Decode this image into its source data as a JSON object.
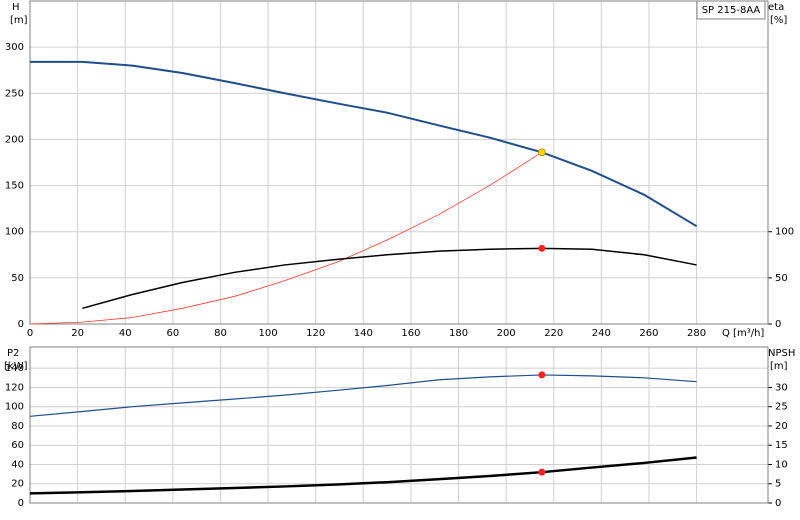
{
  "chart_data": [
    {
      "type": "line",
      "title": "SP 215-8AA",
      "ylabel": "H",
      "yunit": "[m]",
      "y2label": "eta",
      "y2unit": "[%]",
      "xlabel": "Q [m³/h]",
      "xlim": [
        0,
        310
      ],
      "xticks": [
        0,
        20,
        40,
        60,
        80,
        100,
        120,
        140,
        160,
        180,
        200,
        220,
        240,
        260,
        280
      ],
      "ylim": [
        0,
        350
      ],
      "yticks": [
        0,
        50,
        100,
        150,
        200,
        250,
        300
      ],
      "y2lim": [
        0,
        350
      ],
      "y2ticks": [
        0,
        50,
        100
      ],
      "grid": true,
      "series": [
        {
          "color": "#1f4e8c",
          "width": 2,
          "x": [
            0,
            22,
            43,
            64,
            86,
            107,
            129,
            150,
            172,
            193,
            215,
            236,
            258,
            280
          ],
          "values": [
            284,
            284,
            280,
            272,
            261,
            250,
            239,
            229,
            215,
            202,
            186,
            166,
            140,
            106
          ]
        },
        {
          "color": "#ff3b30",
          "width": 0.8,
          "x": [
            0,
            22,
            43,
            64,
            86,
            107,
            129,
            150,
            172,
            193,
            215
          ],
          "values": [
            0,
            2,
            7,
            17,
            30,
            47,
            67,
            91,
            119,
            150,
            186
          ]
        },
        {
          "color": "#000000",
          "width": 1.5,
          "axis": "y2",
          "x": [
            22,
            43,
            64,
            86,
            107,
            129,
            150,
            172,
            193,
            215,
            236,
            258,
            280
          ],
          "values": [
            17,
            32,
            45,
            56,
            64,
            70,
            75,
            79,
            81,
            82,
            81,
            75,
            64
          ]
        }
      ],
      "points": [
        {
          "x": 215,
          "y": 186,
          "color": "#ffd700"
        },
        {
          "x": 215,
          "y": 82,
          "axis": "y2",
          "color": "#ff2020"
        }
      ]
    },
    {
      "type": "line",
      "ylabel": "P2",
      "yunit": "[kW]",
      "y2label": "NPSH",
      "y2unit": "[m]",
      "xlim": [
        0,
        310
      ],
      "xticks": [
        0,
        20,
        40,
        60,
        80,
        100,
        120,
        140,
        160,
        180,
        200,
        220,
        240,
        260,
        280
      ],
      "ylim": [
        0,
        162
      ],
      "yticks": [
        0,
        20,
        40,
        60,
        80,
        100,
        120,
        140
      ],
      "y2lim": [
        0,
        40.5
      ],
      "y2ticks": [
        0,
        5,
        10,
        15,
        20,
        25,
        30
      ],
      "grid": true,
      "series": [
        {
          "color": "#1f4e8c",
          "width": 1.2,
          "x": [
            0,
            22,
            43,
            64,
            86,
            107,
            129,
            150,
            172,
            193,
            215,
            236,
            258,
            280
          ],
          "values": [
            90,
            95,
            100,
            104,
            108,
            112,
            117,
            122,
            128,
            131,
            133,
            132,
            130,
            126
          ]
        },
        {
          "color": "#000000",
          "width": 2.5,
          "axis": "y2",
          "x": [
            0,
            22,
            43,
            64,
            86,
            107,
            129,
            150,
            172,
            193,
            215,
            236,
            258,
            280
          ],
          "values": [
            2.5,
            2.8,
            3.1,
            3.5,
            3.9,
            4.3,
            4.8,
            5.4,
            6.2,
            7,
            8,
            9.2,
            10.4,
            11.8
          ]
        }
      ],
      "points": [
        {
          "x": 215,
          "y": 133,
          "color": "#ff2020"
        },
        {
          "x": 215,
          "y": 8,
          "axis": "y2",
          "color": "#ff2020"
        }
      ]
    }
  ]
}
